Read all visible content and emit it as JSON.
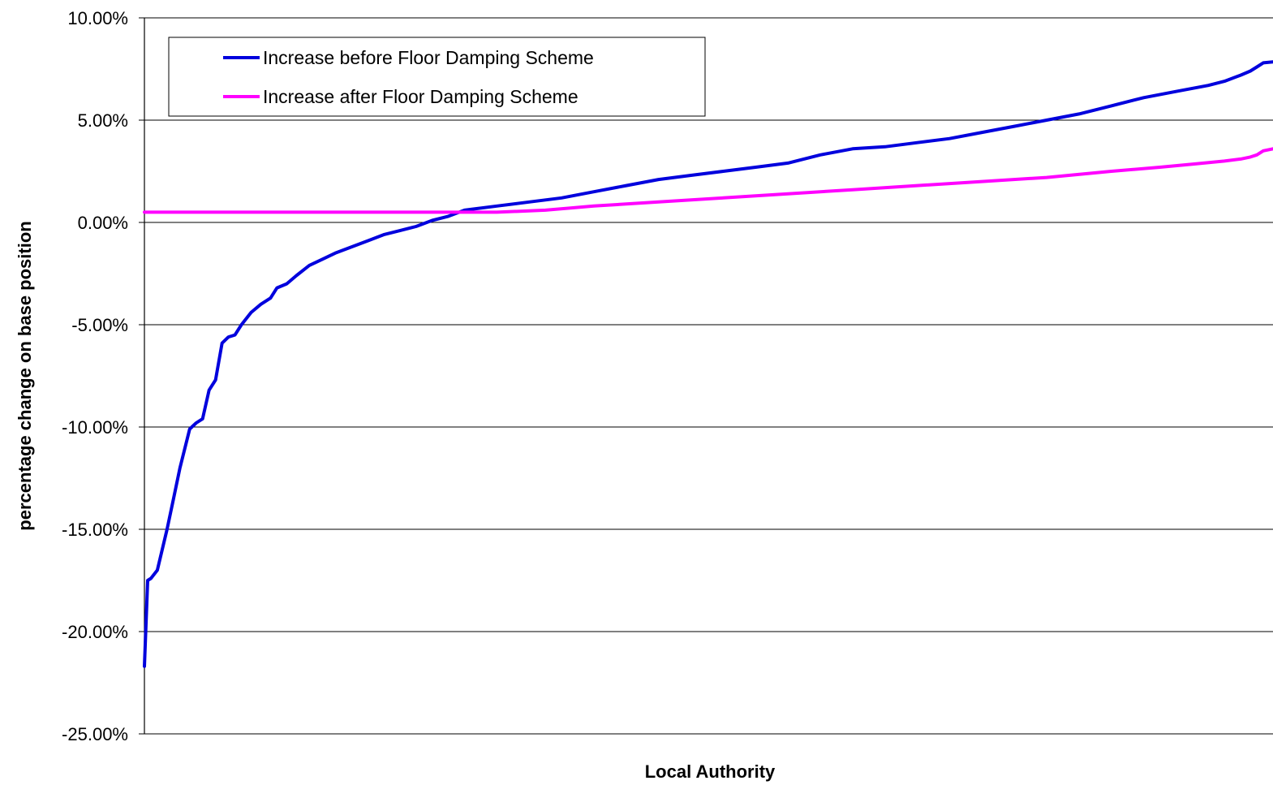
{
  "chart_data": {
    "type": "line",
    "title": "",
    "xlabel": "Local Authority",
    "ylabel": "percentage change on base position",
    "ylim": [
      -25,
      10
    ],
    "yticks": [
      10,
      5,
      0,
      -5,
      -10,
      -15,
      -20,
      -25
    ],
    "ytick_labels": [
      "10.00%",
      "5.00%",
      "0.00%",
      "-5.00%",
      "-10.00%",
      "-15.00%",
      "-20.00%",
      "-25.00%"
    ],
    "grid": true,
    "legend_position": "top-left",
    "n_points": 350,
    "series": [
      {
        "name": "Increase before Floor Damping Scheme",
        "color": "#0000dd",
        "x": [
          1,
          2,
          3,
          5,
          8,
          10,
          12,
          15,
          17,
          19,
          21,
          23,
          25,
          27,
          29,
          31,
          34,
          37,
          40,
          42,
          45,
          48,
          52,
          56,
          60,
          65,
          70,
          75,
          80,
          85,
          90,
          95,
          100,
          110,
          120,
          130,
          140,
          150,
          160,
          170,
          180,
          190,
          200,
          210,
          220,
          230,
          240,
          250,
          260,
          270,
          280,
          290,
          300,
          310,
          320,
          330,
          335,
          340,
          343,
          345,
          347,
          350
        ],
        "values": [
          -21.7,
          -17.5,
          -17.4,
          -17.0,
          -15.0,
          -13.5,
          -12.0,
          -10.1,
          -9.8,
          -9.6,
          -8.2,
          -7.7,
          -5.9,
          -5.6,
          -5.5,
          -5.0,
          -4.4,
          -4.0,
          -3.7,
          -3.2,
          -3.0,
          -2.6,
          -2.1,
          -1.8,
          -1.5,
          -1.2,
          -0.9,
          -0.6,
          -0.4,
          -0.2,
          0.1,
          0.3,
          0.6,
          0.8,
          1.0,
          1.2,
          1.5,
          1.8,
          2.1,
          2.3,
          2.5,
          2.7,
          2.9,
          3.3,
          3.6,
          3.7,
          3.9,
          4.1,
          4.4,
          4.7,
          5.0,
          5.3,
          5.7,
          6.1,
          6.4,
          6.7,
          6.9,
          7.2,
          7.4,
          7.6,
          7.8,
          7.85
        ]
      },
      {
        "name": "Increase after Floor Damping Scheme",
        "color": "#ff00ff",
        "x": [
          1,
          30,
          60,
          90,
          110,
          125,
          140,
          160,
          180,
          200,
          220,
          240,
          260,
          280,
          300,
          315,
          325,
          335,
          340,
          343,
          345,
          347,
          350
        ],
        "values": [
          0.5,
          0.5,
          0.5,
          0.5,
          0.5,
          0.6,
          0.8,
          1.0,
          1.2,
          1.4,
          1.6,
          1.8,
          2.0,
          2.2,
          2.5,
          2.7,
          2.85,
          3.0,
          3.1,
          3.2,
          3.3,
          3.5,
          3.6
        ]
      }
    ]
  }
}
